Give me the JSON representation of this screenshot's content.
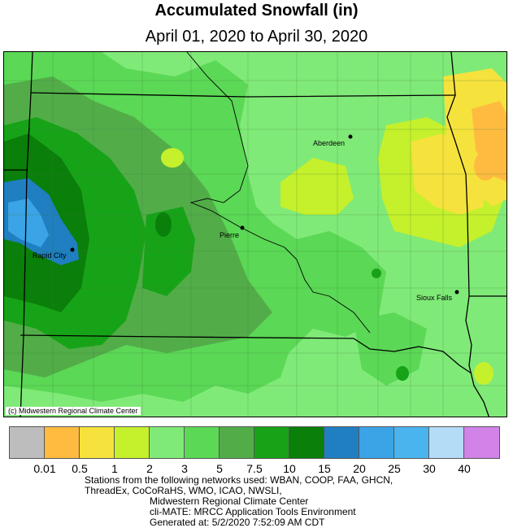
{
  "header": {
    "title": "Accumulated Snowfall (in)",
    "subtitle": "April 01, 2020 to April 30, 2020"
  },
  "map": {
    "credit": "(c) Midwestern Regional Climate Center",
    "cities": [
      {
        "name": "Aberdeen"
      },
      {
        "name": "Pierre"
      },
      {
        "name": "Rapid City"
      },
      {
        "name": "Sioux Falls"
      }
    ]
  },
  "legend": {
    "colors": [
      "#bdbdbd",
      "#ffbb40",
      "#f5e23c",
      "#c5f02c",
      "#80ea78",
      "#5bd856",
      "#52ad49",
      "#17a317",
      "#0a7f0a",
      "#1f7fc1",
      "#3ba4e6",
      "#4ab4ee",
      "#b4dcf7",
      "#d183e8"
    ],
    "ticks": [
      "0.01",
      "0.5",
      "1",
      "2",
      "3",
      "5",
      "7.5",
      "10",
      "15",
      "20",
      "25",
      "30",
      "40"
    ]
  },
  "footer": {
    "line1": "Stations from the following networks used: WBAN, COOP, FAA, GHCN,",
    "line2": "ThreadEx, CoCoRaHS, WMO, ICAO, NWSLI,",
    "line3": "Midwestern Regional Climate Center",
    "line4": "cli-MATE: MRCC Application Tools Environment",
    "line5": "Generated at: 5/2/2020 7:52:09 AM CDT"
  }
}
